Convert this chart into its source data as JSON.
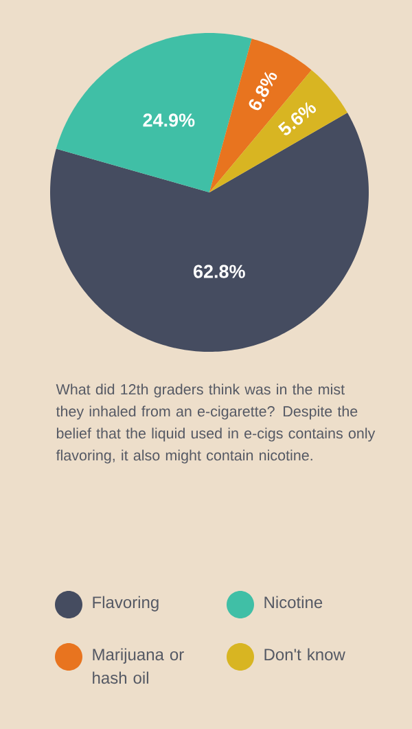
{
  "chart_data": {
    "type": "pie",
    "categories": [
      "Flavoring",
      "Nicotine",
      "Marijuana or hash oil",
      "Don't know"
    ],
    "values": [
      62.8,
      24.9,
      6.8,
      5.6
    ],
    "colors": [
      "#454c60",
      "#40bfa6",
      "#e8741f",
      "#d8b522"
    ],
    "value_labels": [
      "62.8%",
      "24.9%",
      "6.8%",
      "5.6%"
    ],
    "legend": "bottom",
    "annotations": [
      "What did 12th graders think was in the mist they inhaled from an e-cigarette? Despite the belief that the liquid used in e-cigs contains only flavoring, it also might contain nicotine."
    ]
  }
}
